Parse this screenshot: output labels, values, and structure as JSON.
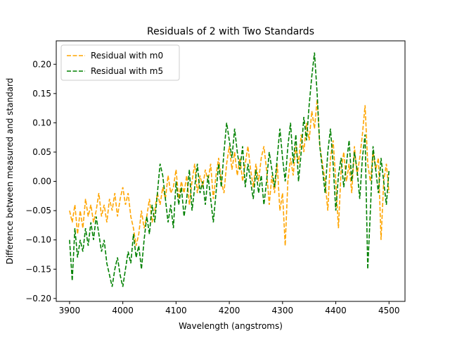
{
  "chart_data": {
    "type": "line",
    "title": "Residuals of 2 with Two Standards",
    "xlabel": "Wavelength (angstroms)",
    "ylabel": "Difference between measured and standard",
    "xlim": [
      3875,
      4530
    ],
    "ylim": [
      -0.205,
      0.24
    ],
    "xticks": [
      3900,
      4000,
      4100,
      4200,
      4300,
      4400,
      4500
    ],
    "yticks": [
      -0.2,
      -0.15,
      -0.1,
      -0.05,
      0.0,
      0.05,
      0.1,
      0.15,
      0.2
    ],
    "grid": false,
    "legend_position": "upper-left",
    "series": [
      {
        "name": "Residual with m0",
        "color": "#ffa500",
        "dash": "dashed",
        "x": [
          3900,
          3905,
          3910,
          3915,
          3920,
          3925,
          3930,
          3935,
          3940,
          3945,
          3950,
          3955,
          3960,
          3965,
          3970,
          3975,
          3980,
          3985,
          3990,
          3995,
          4000,
          4005,
          4010,
          4015,
          4020,
          4025,
          4030,
          4035,
          4040,
          4045,
          4050,
          4055,
          4060,
          4065,
          4070,
          4075,
          4080,
          4085,
          4090,
          4095,
          4100,
          4105,
          4110,
          4115,
          4120,
          4125,
          4130,
          4135,
          4140,
          4145,
          4150,
          4155,
          4160,
          4165,
          4170,
          4175,
          4180,
          4185,
          4190,
          4195,
          4200,
          4205,
          4210,
          4215,
          4220,
          4225,
          4230,
          4235,
          4240,
          4245,
          4250,
          4255,
          4260,
          4265,
          4270,
          4275,
          4280,
          4285,
          4290,
          4295,
          4300,
          4305,
          4310,
          4315,
          4320,
          4325,
          4330,
          4335,
          4340,
          4345,
          4350,
          4355,
          4360,
          4365,
          4370,
          4375,
          4380,
          4385,
          4390,
          4395,
          4400,
          4405,
          4410,
          4415,
          4420,
          4425,
          4430,
          4435,
          4440,
          4445,
          4450,
          4455,
          4460,
          4465,
          4470,
          4475,
          4480,
          4485,
          4490,
          4495,
          4500
        ],
        "y": [
          -0.05,
          -0.07,
          -0.04,
          -0.09,
          -0.05,
          -0.08,
          -0.03,
          -0.06,
          -0.04,
          -0.07,
          -0.05,
          -0.02,
          -0.06,
          -0.04,
          -0.07,
          -0.03,
          -0.05,
          -0.02,
          -0.06,
          -0.03,
          -0.01,
          -0.04,
          -0.02,
          -0.06,
          -0.08,
          -0.11,
          -0.09,
          -0.05,
          -0.08,
          -0.06,
          -0.03,
          -0.07,
          -0.05,
          -0.02,
          -0.04,
          -0.01,
          -0.03,
          0.01,
          -0.02,
          -0.01,
          0.02,
          -0.03,
          0.0,
          -0.02,
          0.01,
          -0.04,
          0.0,
          0.03,
          -0.02,
          0.01,
          -0.01,
          0.02,
          0.0,
          0.03,
          -0.03,
          0.01,
          0.04,
          0.0,
          -0.02,
          0.03,
          0.06,
          0.02,
          0.05,
          0.01,
          0.04,
          0.0,
          0.03,
          0.06,
          0.02,
          -0.01,
          0.03,
          0.0,
          0.04,
          0.06,
          0.02,
          -0.04,
          0.01,
          -0.02,
          0.03,
          -0.05,
          -0.02,
          -0.11,
          0.0,
          0.04,
          0.01,
          0.06,
          0.03,
          0.08,
          0.05,
          0.1,
          0.07,
          0.12,
          0.09,
          0.14,
          0.06,
          0.03,
          0.0,
          -0.05,
          0.04,
          0.07,
          0.0,
          -0.08,
          0.02,
          0.05,
          0.0,
          0.03,
          -0.02,
          0.06,
          0.01,
          0.04,
          0.08,
          0.13,
          0.03,
          0.0,
          0.05,
          0.02,
          0.04,
          -0.1,
          0.0,
          0.03,
          -0.02
        ],
        "x_note": ""
      },
      {
        "name": "Residual with m5",
        "color": "#008000",
        "dash": "dashed",
        "x": [
          3900,
          3905,
          3910,
          3915,
          3920,
          3925,
          3930,
          3935,
          3940,
          3945,
          3950,
          3955,
          3960,
          3965,
          3970,
          3975,
          3980,
          3985,
          3990,
          3995,
          4000,
          4005,
          4010,
          4015,
          4020,
          4025,
          4030,
          4035,
          4040,
          4045,
          4050,
          4055,
          4060,
          4065,
          4070,
          4075,
          4080,
          4085,
          4090,
          4095,
          4100,
          4105,
          4110,
          4115,
          4120,
          4125,
          4130,
          4135,
          4140,
          4145,
          4150,
          4155,
          4160,
          4165,
          4170,
          4175,
          4180,
          4185,
          4190,
          4195,
          4200,
          4205,
          4210,
          4215,
          4220,
          4225,
          4230,
          4235,
          4240,
          4245,
          4250,
          4255,
          4260,
          4265,
          4270,
          4275,
          4280,
          4285,
          4290,
          4295,
          4300,
          4305,
          4310,
          4315,
          4320,
          4325,
          4330,
          4335,
          4340,
          4345,
          4350,
          4355,
          4360,
          4365,
          4370,
          4375,
          4380,
          4385,
          4390,
          4395,
          4400,
          4405,
          4410,
          4415,
          4420,
          4425,
          4430,
          4435,
          4440,
          4445,
          4450,
          4455,
          4460,
          4465,
          4470,
          4475,
          4480,
          4485,
          4490,
          4495,
          4500
        ],
        "y": [
          -0.1,
          -0.17,
          -0.08,
          -0.13,
          -0.1,
          -0.12,
          -0.08,
          -0.11,
          -0.07,
          -0.1,
          -0.06,
          -0.09,
          -0.12,
          -0.1,
          -0.14,
          -0.16,
          -0.18,
          -0.15,
          -0.13,
          -0.16,
          -0.18,
          -0.15,
          -0.12,
          -0.14,
          -0.09,
          -0.13,
          -0.11,
          -0.15,
          -0.1,
          -0.06,
          -0.09,
          -0.04,
          -0.07,
          -0.02,
          0.03,
          0.01,
          -0.03,
          -0.07,
          -0.04,
          -0.08,
          0.0,
          -0.04,
          -0.01,
          -0.06,
          -0.03,
          0.02,
          -0.05,
          -0.01,
          0.03,
          -0.02,
          0.0,
          -0.04,
          0.01,
          -0.03,
          -0.07,
          -0.02,
          0.03,
          -0.01,
          0.05,
          0.1,
          0.07,
          0.04,
          0.09,
          0.05,
          0.02,
          0.06,
          -0.01,
          0.03,
          0.0,
          -0.03,
          0.02,
          -0.02,
          0.01,
          -0.04,
          0.0,
          0.05,
          0.02,
          -0.01,
          0.04,
          0.09,
          0.04,
          0.0,
          0.06,
          0.1,
          0.03,
          0.08,
          0.0,
          0.05,
          0.11,
          0.07,
          0.13,
          0.18,
          0.22,
          0.15,
          0.06,
          0.02,
          -0.02,
          0.05,
          0.09,
          0.03,
          -0.05,
          0.01,
          0.04,
          -0.01,
          0.03,
          0.07,
          0.0,
          0.05,
          0.02,
          -0.03,
          0.04,
          0.08,
          -0.15,
          -0.05,
          0.06,
          0.02,
          -0.02,
          0.04,
          0.0,
          -0.04,
          0.02
        ]
      }
    ]
  }
}
